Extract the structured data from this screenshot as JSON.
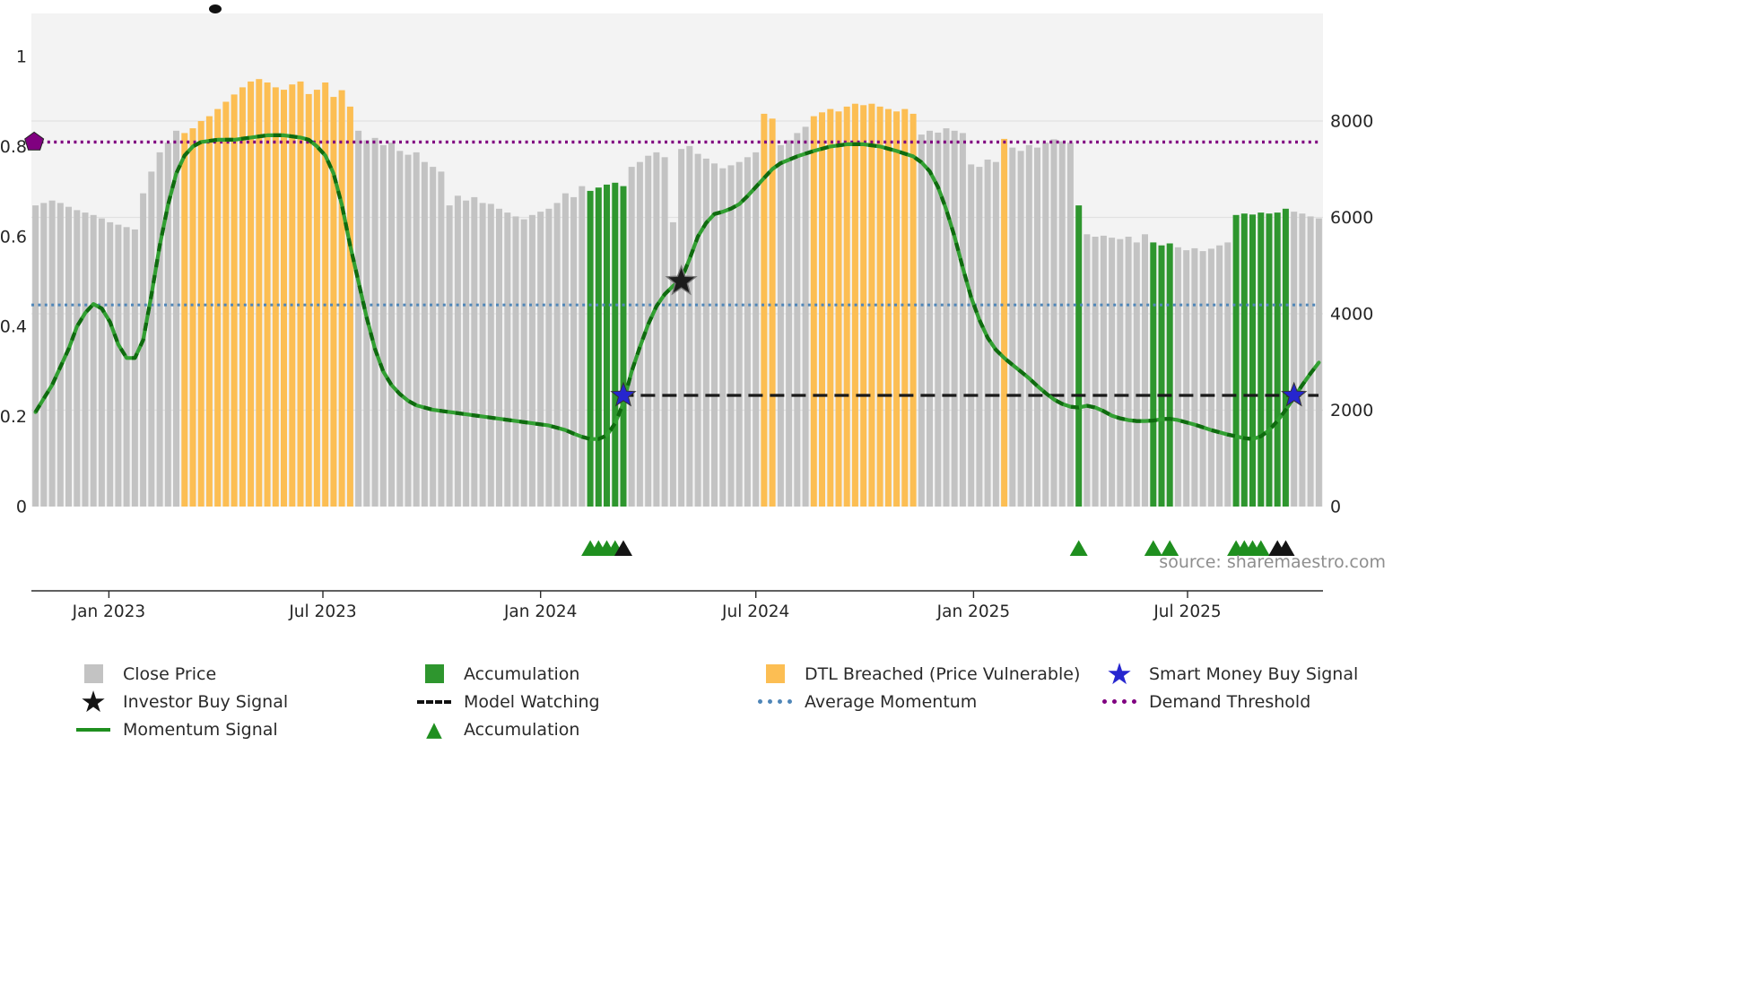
{
  "source": {
    "text": "source: sharemaestro.com"
  },
  "colors": {
    "bar_gray": "#c3c3c3",
    "bar_orange": "#fcbe53",
    "bar_green": "#2e962e",
    "momentum_line": "#32a032",
    "momentum_line_dark": "#0f6b0f",
    "demand_threshold": "#800080",
    "average_momentum": "#4f86b8",
    "model_watching": "#1a1a1a",
    "investor_star": "#1c1c1c",
    "smart_money_star": "#2626cf",
    "triangle_green": "#1f8f1f",
    "plot_background": "#f3f3f3",
    "gridline": "#e1e1e1",
    "axis_text": "#262626",
    "source_text": "#8e8e8e"
  },
  "chart_data": {
    "type": "bar",
    "title": "",
    "left_axis": {
      "label": "",
      "range": [
        0,
        1.08
      ],
      "tick_values": [
        0,
        0.2,
        0.4,
        0.6,
        0.8,
        1
      ],
      "tick_labels": [
        "0",
        "0.2",
        "0.4",
        "0.6",
        "0.8",
        "1"
      ]
    },
    "right_axis": {
      "label": "",
      "range": [
        0,
        8600
      ],
      "tick_values": [
        0,
        2000,
        4000,
        6000,
        8000
      ],
      "tick_labels": [
        "0",
        "2000",
        "4000",
        "6000",
        "8000"
      ]
    },
    "x_axis": {
      "ticks": [
        {
          "label": "Jan 2023",
          "week": 8.86
        },
        {
          "label": "Jul 2023",
          "week": 34.71
        },
        {
          "label": "Jan 2024",
          "week": 61.0
        },
        {
          "label": "Jul 2024",
          "week": 87.0
        },
        {
          "label": "Jan 2025",
          "week": 113.29
        },
        {
          "label": "Jul 2025",
          "week": 139.14
        }
      ]
    },
    "bars": {
      "name": "Close Price (weekly)",
      "values": [
        6250,
        6300,
        6350,
        6300,
        6220,
        6150,
        6100,
        6050,
        5980,
        5900,
        5850,
        5800,
        5750,
        6500,
        6950,
        7350,
        7550,
        7800,
        7750,
        7850,
        8000,
        8100,
        8250,
        8400,
        8550,
        8700,
        8820,
        8870,
        8800,
        8700,
        8650,
        8760,
        8820,
        8560,
        8650,
        8800,
        8500,
        8640,
        8300,
        7800,
        7600,
        7650,
        7500,
        7550,
        7380,
        7300,
        7350,
        7150,
        7050,
        6950,
        6250,
        6450,
        6350,
        6420,
        6300,
        6280,
        6180,
        6100,
        6020,
        5960,
        6050,
        6120,
        6180,
        6300,
        6500,
        6420,
        6650,
        6550,
        6620,
        6680,
        6720,
        6650,
        7050,
        7150,
        7280,
        7350,
        7250,
        5900,
        7420,
        7480,
        7320,
        7220,
        7120,
        7020,
        7080,
        7150,
        7250,
        7350,
        8150,
        8050,
        7500,
        7600,
        7750,
        7880,
        8100,
        8180,
        8250,
        8200,
        8300,
        8360,
        8330,
        8360,
        8300,
        8250,
        8200,
        8250,
        8150,
        7720,
        7800,
        7760,
        7850,
        7800,
        7750,
        7100,
        7050,
        7200,
        7150,
        7630,
        7450,
        7380,
        7500,
        7450,
        7550,
        7620,
        7580,
        7550,
        6250,
        5650,
        5600,
        5620,
        5580,
        5550,
        5600,
        5480,
        5650,
        5480,
        5420,
        5460,
        5380,
        5320,
        5360,
        5300,
        5350,
        5420,
        5480,
        6050,
        6080,
        6060,
        6100,
        6080,
        6100,
        6180,
        6120,
        6080,
        6020,
        5980
      ],
      "dtl_breached_ranges": [
        [
          18,
          38
        ],
        [
          88,
          89
        ],
        [
          94,
          106
        ],
        [
          117,
          117
        ]
      ],
      "accumulation_ranges": [
        [
          67,
          71
        ],
        [
          126,
          126
        ],
        [
          135,
          137
        ],
        [
          145,
          151
        ]
      ]
    },
    "momentum": {
      "name": "Momentum Signal",
      "points": [
        [
          0,
          0.21
        ],
        [
          1,
          0.24
        ],
        [
          2,
          0.27
        ],
        [
          3,
          0.31
        ],
        [
          4,
          0.35
        ],
        [
          5,
          0.4
        ],
        [
          6,
          0.43
        ],
        [
          7,
          0.45
        ],
        [
          8,
          0.44
        ],
        [
          9,
          0.41
        ],
        [
          10,
          0.36
        ],
        [
          11,
          0.33
        ],
        [
          12,
          0.33
        ],
        [
          13,
          0.37
        ],
        [
          14,
          0.47
        ],
        [
          15,
          0.58
        ],
        [
          16,
          0.67
        ],
        [
          17,
          0.74
        ],
        [
          18,
          0.78
        ],
        [
          19,
          0.8
        ],
        [
          20,
          0.81
        ],
        [
          22,
          0.815
        ],
        [
          24,
          0.815
        ],
        [
          26,
          0.82
        ],
        [
          28,
          0.825
        ],
        [
          30,
          0.825
        ],
        [
          32,
          0.82
        ],
        [
          33,
          0.815
        ],
        [
          34,
          0.8
        ],
        [
          35,
          0.78
        ],
        [
          36,
          0.74
        ],
        [
          37,
          0.67
        ],
        [
          38,
          0.58
        ],
        [
          39,
          0.5
        ],
        [
          40,
          0.42
        ],
        [
          41,
          0.35
        ],
        [
          42,
          0.3
        ],
        [
          43,
          0.27
        ],
        [
          44,
          0.25
        ],
        [
          45,
          0.235
        ],
        [
          46,
          0.225
        ],
        [
          48,
          0.215
        ],
        [
          50,
          0.21
        ],
        [
          52,
          0.205
        ],
        [
          54,
          0.2
        ],
        [
          56,
          0.195
        ],
        [
          58,
          0.19
        ],
        [
          60,
          0.185
        ],
        [
          62,
          0.18
        ],
        [
          64,
          0.17
        ],
        [
          65,
          0.162
        ],
        [
          66,
          0.155
        ],
        [
          67,
          0.15
        ],
        [
          68,
          0.15
        ],
        [
          69,
          0.158
        ],
        [
          70,
          0.185
        ],
        [
          71,
          0.23
        ],
        [
          72,
          0.3
        ],
        [
          73,
          0.355
        ],
        [
          74,
          0.405
        ],
        [
          75,
          0.445
        ],
        [
          76,
          0.472
        ],
        [
          77,
          0.49
        ],
        [
          78,
          0.505
        ],
        [
          79,
          0.55
        ],
        [
          80,
          0.6
        ],
        [
          81,
          0.63
        ],
        [
          82,
          0.65
        ],
        [
          83,
          0.655
        ],
        [
          84,
          0.662
        ],
        [
          85,
          0.672
        ],
        [
          86,
          0.69
        ],
        [
          87,
          0.71
        ],
        [
          88,
          0.73
        ],
        [
          89,
          0.75
        ],
        [
          90,
          0.763
        ],
        [
          92,
          0.778
        ],
        [
          94,
          0.79
        ],
        [
          96,
          0.8
        ],
        [
          98,
          0.805
        ],
        [
          100,
          0.805
        ],
        [
          102,
          0.8
        ],
        [
          104,
          0.79
        ],
        [
          106,
          0.778
        ],
        [
          107,
          0.765
        ],
        [
          108,
          0.745
        ],
        [
          109,
          0.71
        ],
        [
          110,
          0.66
        ],
        [
          111,
          0.6
        ],
        [
          112,
          0.53
        ],
        [
          113,
          0.465
        ],
        [
          114,
          0.415
        ],
        [
          115,
          0.375
        ],
        [
          116,
          0.348
        ],
        [
          117,
          0.33
        ],
        [
          118,
          0.315
        ],
        [
          119,
          0.3
        ],
        [
          120,
          0.285
        ],
        [
          121,
          0.268
        ],
        [
          122,
          0.252
        ],
        [
          123,
          0.238
        ],
        [
          124,
          0.228
        ],
        [
          125,
          0.222
        ],
        [
          126,
          0.22
        ],
        [
          127,
          0.224
        ],
        [
          128,
          0.22
        ],
        [
          129,
          0.212
        ],
        [
          130,
          0.202
        ],
        [
          131,
          0.196
        ],
        [
          132,
          0.192
        ],
        [
          133,
          0.19
        ],
        [
          134,
          0.19
        ],
        [
          135,
          0.191
        ],
        [
          136,
          0.194
        ],
        [
          137,
          0.195
        ],
        [
          138,
          0.192
        ],
        [
          139,
          0.187
        ],
        [
          140,
          0.182
        ],
        [
          141,
          0.176
        ],
        [
          142,
          0.17
        ],
        [
          143,
          0.165
        ],
        [
          144,
          0.16
        ],
        [
          145,
          0.156
        ],
        [
          146,
          0.152
        ],
        [
          147,
          0.15
        ],
        [
          148,
          0.156
        ],
        [
          149,
          0.17
        ],
        [
          150,
          0.19
        ],
        [
          151,
          0.215
        ],
        [
          152,
          0.242
        ],
        [
          153,
          0.27
        ],
        [
          154,
          0.296
        ],
        [
          155,
          0.32
        ]
      ]
    },
    "reference_lines": {
      "demand_threshold": {
        "value": 0.81
      },
      "average_momentum": {
        "value": 0.448
      },
      "model_watching": {
        "value": 0.247,
        "start_week": 70.5
      }
    },
    "markers": {
      "demand_threshold_start": {
        "week": 0,
        "value": 0.81
      },
      "investor_buy_stars": [
        {
          "week": 78,
          "value": 0.5
        }
      ],
      "smart_money_stars": [
        {
          "week": 71,
          "value": 0.247
        },
        {
          "week": 152,
          "value": 0.247
        }
      ],
      "accumulation_triangle_weeks": [
        67,
        68,
        69,
        70,
        126,
        135,
        137,
        145,
        146,
        147,
        148
      ],
      "black_triangle_weeks": [
        71,
        150,
        151
      ]
    }
  },
  "legend": {
    "items": [
      {
        "label": "Close Price",
        "swatch": "gray-square"
      },
      {
        "label": "Accumulation",
        "swatch": "green-square"
      },
      {
        "label": "DTL Breached (Price Vulnerable)",
        "swatch": "orange-square"
      },
      {
        "label": "Smart Money Buy Signal",
        "swatch": "blue-star"
      },
      {
        "label": "Investor Buy Signal",
        "swatch": "black-star"
      },
      {
        "label": "Model Watching",
        "swatch": "black-dashed-line"
      },
      {
        "label": "Average Momentum",
        "swatch": "blue-dotted-line"
      },
      {
        "label": "Demand Threshold",
        "swatch": "purple-dotted-line"
      },
      {
        "label": "Momentum Signal",
        "swatch": "green-line"
      },
      {
        "label": "Accumulation",
        "swatch": "green-triangle"
      }
    ]
  }
}
